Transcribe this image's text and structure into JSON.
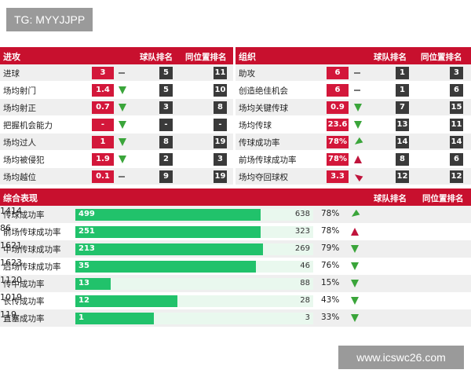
{
  "watermark_top": "TG: MYYJJPP",
  "watermark_bottom": "www.icswc26.com",
  "attack": {
    "title": "进攻",
    "col_team_rank": "球队排名",
    "col_pos_rank": "同位置排名",
    "rows": [
      {
        "label": "进球",
        "value": "3",
        "trend": "flat",
        "team_rank": "5",
        "pos_rank": "11"
      },
      {
        "label": "场均射门",
        "value": "1.4",
        "trend": "down",
        "team_rank": "5",
        "pos_rank": "10"
      },
      {
        "label": "场均射正",
        "value": "0.7",
        "trend": "down",
        "team_rank": "3",
        "pos_rank": "8"
      },
      {
        "label": "把握机会能力",
        "value": "-",
        "trend": "down",
        "team_rank": "-",
        "pos_rank": "-"
      },
      {
        "label": "场均过人",
        "value": "1",
        "trend": "down",
        "team_rank": "8",
        "pos_rank": "19"
      },
      {
        "label": "场均被侵犯",
        "value": "1.9",
        "trend": "down",
        "team_rank": "2",
        "pos_rank": "3"
      },
      {
        "label": "场均越位",
        "value": "0.1",
        "trend": "flat",
        "team_rank": "9",
        "pos_rank": "19"
      }
    ]
  },
  "organize": {
    "title": "组织",
    "col_team_rank": "球队排名",
    "col_pos_rank": "同位置排名",
    "rows": [
      {
        "label": "助攻",
        "value": "6",
        "trend": "flat",
        "team_rank": "1",
        "pos_rank": "3"
      },
      {
        "label": "创造绝佳机会",
        "value": "6",
        "trend": "flat",
        "team_rank": "1",
        "pos_rank": "6"
      },
      {
        "label": "场均关键传球",
        "value": "0.9",
        "trend": "down",
        "team_rank": "7",
        "pos_rank": "15"
      },
      {
        "label": "场均传球",
        "value": "23.6",
        "trend": "down",
        "team_rank": "13",
        "pos_rank": "11"
      },
      {
        "label": "传球成功率",
        "value": "78%",
        "trend": "diag-green",
        "team_rank": "14",
        "pos_rank": "14"
      },
      {
        "label": "前场传球成功率",
        "value": "78%",
        "trend": "up",
        "team_rank": "8",
        "pos_rank": "6"
      },
      {
        "label": "场均夺回球权",
        "value": "3.3",
        "trend": "diag-red",
        "team_rank": "12",
        "pos_rank": "12"
      }
    ]
  },
  "summary": {
    "title": "综合表现",
    "col_team_rank": "球队排名",
    "col_pos_rank": "同位置排名",
    "rows": [
      {
        "label": "传球成功率",
        "made": "499",
        "total": "638",
        "fill": 0.78,
        "pct": "78%",
        "trend": "diag-green",
        "team_rank": "14",
        "pos_rank": "14"
      },
      {
        "label": "前场传球成功率",
        "made": "251",
        "total": "323",
        "fill": 0.78,
        "pct": "78%",
        "trend": "up",
        "team_rank": "8",
        "pos_rank": "6"
      },
      {
        "label": "中场传球成功率",
        "made": "213",
        "total": "269",
        "fill": 0.79,
        "pct": "79%",
        "trend": "down",
        "team_rank": "16",
        "pos_rank": "21"
      },
      {
        "label": "后场传球成功率",
        "made": "35",
        "total": "46",
        "fill": 0.76,
        "pct": "76%",
        "trend": "down",
        "team_rank": "16",
        "pos_rank": "23"
      },
      {
        "label": "传中成功率",
        "made": "13",
        "total": "88",
        "fill": 0.15,
        "pct": "15%",
        "trend": "down",
        "team_rank": "11",
        "pos_rank": "20"
      },
      {
        "label": "长传成功率",
        "made": "12",
        "total": "28",
        "fill": 0.43,
        "pct": "43%",
        "trend": "down",
        "team_rank": "10",
        "pos_rank": "19"
      },
      {
        "label": "直塞成功率",
        "made": "1",
        "total": "3",
        "fill": 0.33,
        "pct": "33%",
        "trend": "down",
        "team_rank": "11",
        "pos_rank": "9"
      }
    ]
  }
}
